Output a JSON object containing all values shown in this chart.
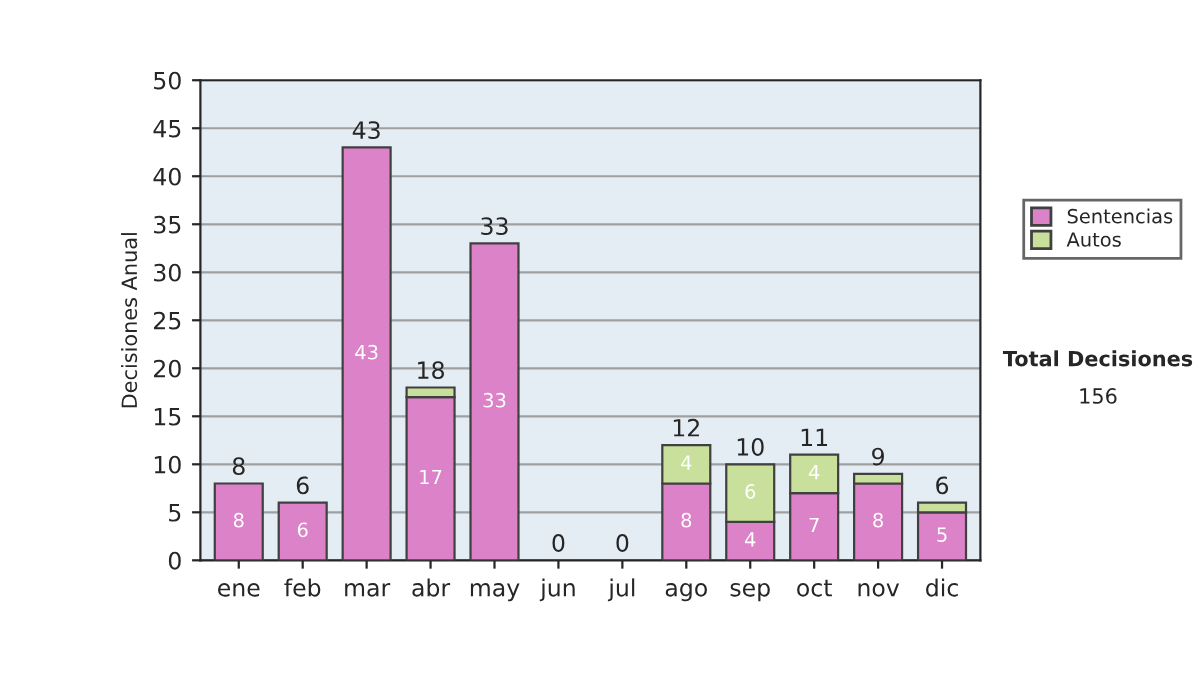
{
  "chart_data": {
    "type": "bar",
    "stacked": true,
    "ylabel": "Decisiones Anual",
    "categories": [
      "ene",
      "feb",
      "mar",
      "abr",
      "may",
      "jun",
      "jul",
      "ago",
      "sep",
      "oct",
      "nov",
      "dic"
    ],
    "series": [
      {
        "name": "Sentencias",
        "color": "#dc82c8",
        "values": [
          8,
          6,
          43,
          17,
          33,
          0,
          0,
          8,
          4,
          7,
          8,
          5
        ],
        "value_labels": [
          "8",
          "6",
          "43",
          "17",
          "33",
          null,
          null,
          "8",
          "4",
          "7",
          "8",
          "5"
        ]
      },
      {
        "name": "Autos",
        "color": "#c8e09c",
        "values": [
          0,
          0,
          0,
          1,
          0,
          0,
          0,
          4,
          6,
          4,
          1,
          1
        ],
        "value_labels": [
          null,
          null,
          null,
          null,
          null,
          null,
          null,
          "4",
          "6",
          "4",
          null,
          null
        ]
      }
    ],
    "totals": [
      "8",
      "6",
      "43",
      "18",
      "33",
      "0",
      "0",
      "12",
      "10",
      "11",
      "9",
      "6"
    ],
    "ylim": [
      0,
      50
    ],
    "yticks": [
      0,
      5,
      10,
      15,
      20,
      25,
      30,
      35,
      40,
      45,
      50
    ],
    "grid": "y",
    "legend": "right",
    "annotations": [
      "Total Decisiones",
      "156"
    ]
  }
}
